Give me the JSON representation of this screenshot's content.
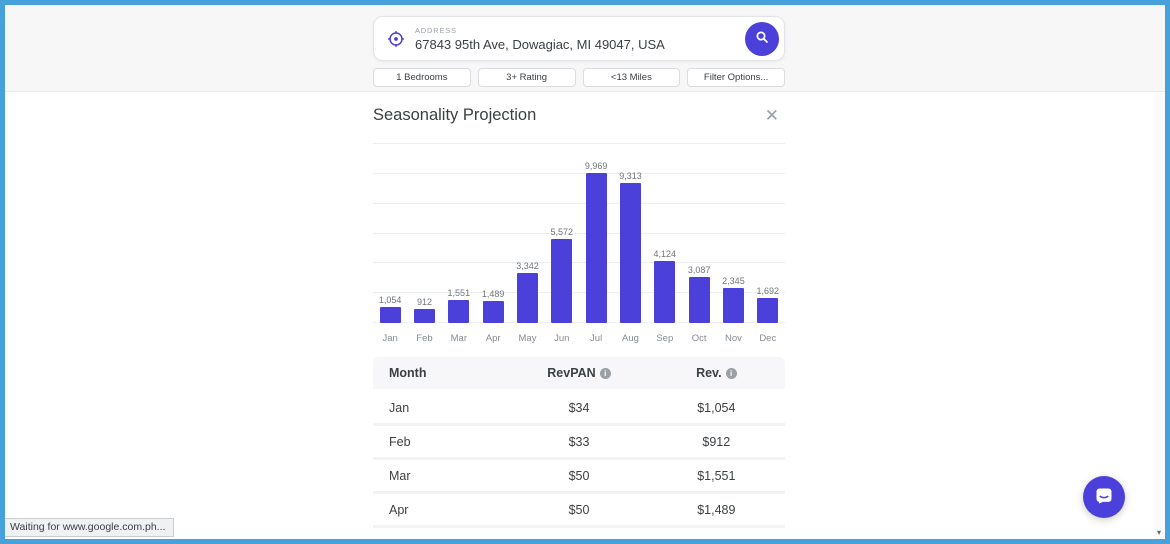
{
  "window": {
    "status_text": "Waiting for www.google.com.ph..."
  },
  "search": {
    "label": "ADDRESS",
    "value": "67843 95th Ave, Dowagiac, MI 49047, USA"
  },
  "filters": [
    {
      "label": "1 Bedrooms"
    },
    {
      "label": "3+ Rating"
    },
    {
      "label": "<13 Miles"
    },
    {
      "label": "Filter Options..."
    }
  ],
  "panel": {
    "title": "Seasonality Projection",
    "close_label": "✕"
  },
  "chart_data": {
    "type": "bar",
    "title": "Seasonality Projection",
    "categories": [
      "Jan",
      "Feb",
      "Mar",
      "Apr",
      "May",
      "Jun",
      "Jul",
      "Aug",
      "Sep",
      "Oct",
      "Nov",
      "Dec"
    ],
    "values": [
      1054,
      912,
      1551,
      1489,
      3342,
      5572,
      9969,
      9313,
      4124,
      3087,
      2345,
      1692
    ],
    "value_labels": [
      "1,054",
      "912",
      "1,551",
      "1,489",
      "3,342",
      "5,572",
      "9,969",
      "9,313",
      "4,124",
      "3,087",
      "2,345",
      "1,692"
    ],
    "xlabel": "",
    "ylabel": "",
    "ylim": [
      0,
      12000
    ],
    "grid": true,
    "grid_interval": 2000,
    "legend": false,
    "bar_color": "#4B40D9"
  },
  "table": {
    "columns": [
      "Month",
      "RevPAN",
      "Rev."
    ],
    "info_glyph": "i",
    "rows": [
      {
        "month": "Jan",
        "revpan": "$34",
        "rev": "$1,054"
      },
      {
        "month": "Feb",
        "revpan": "$33",
        "rev": "$912"
      },
      {
        "month": "Mar",
        "revpan": "$50",
        "rev": "$1,551"
      },
      {
        "month": "Apr",
        "revpan": "$50",
        "rev": "$1,489"
      }
    ]
  },
  "colors": {
    "accent": "#4B40D9",
    "frame_border": "#47A1DB",
    "header_bg": "#F7F7F8",
    "grid_line": "#EDEEF1"
  }
}
